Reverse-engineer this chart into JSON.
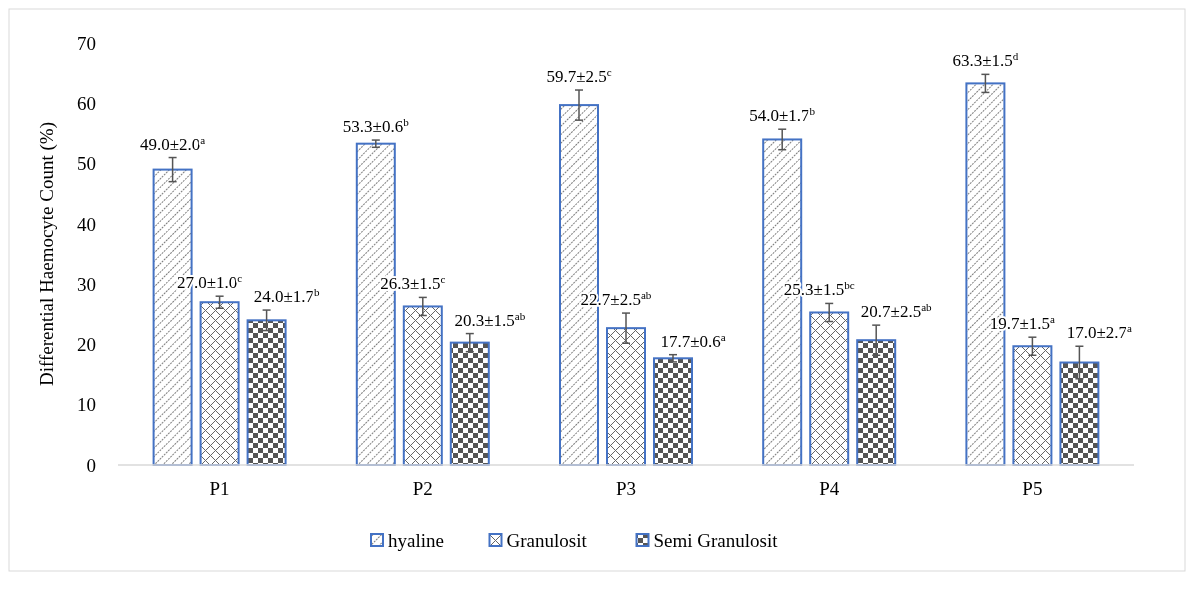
{
  "chart_data": {
    "type": "bar",
    "ylabel": "Differential Haemocyte Count (%)",
    "categories": [
      "P1",
      "P2",
      "P3",
      "P4",
      "P5"
    ],
    "series": [
      {
        "name": "hyaline",
        "color": "#4472c4",
        "values": [
          49.0,
          53.3,
          59.7,
          54.0,
          63.3
        ],
        "errors": [
          2.0,
          0.6,
          2.5,
          1.7,
          1.5
        ],
        "value_labels": [
          "49.0±2.0$^{a}$",
          "53.3±0.6$^{b}$",
          "59.7±2.5$^{c}$",
          "54.0±1.7$^{b}$",
          "63.3±1.5$^{d}$"
        ]
      },
      {
        "name": "Granulosit",
        "color": "#4472c4",
        "values": [
          27.0,
          26.3,
          22.7,
          25.3,
          19.7
        ],
        "errors": [
          1.0,
          1.5,
          2.5,
          1.5,
          1.5
        ],
        "value_labels": [
          "27.0±1.0$^{c}$",
          "26.3±1.5$^{c}$",
          "22.7±2.5$^{ab}$",
          "25.3±1.5$^{bc}$",
          "19.7±1.5$^{a}$"
        ]
      },
      {
        "name": "Semi Granulosit",
        "color": "#4472c4",
        "values": [
          24.0,
          20.3,
          17.7,
          20.7,
          17.0
        ],
        "errors": [
          1.7,
          1.5,
          0.6,
          2.5,
          2.7
        ],
        "value_labels": [
          "24.0±1.7$^{b}$",
          "20.3±1.5$^{ab}$",
          "17.7±0.6$^{a}$",
          "20.7±2.5$^{ab}$",
          "17.0±2.7$^{a}$"
        ]
      }
    ],
    "ylim": [
      0,
      70
    ],
    "yticks": [
      0,
      10,
      20,
      30,
      40,
      50,
      60,
      70
    ],
    "grid": false,
    "legend": "bottom"
  }
}
